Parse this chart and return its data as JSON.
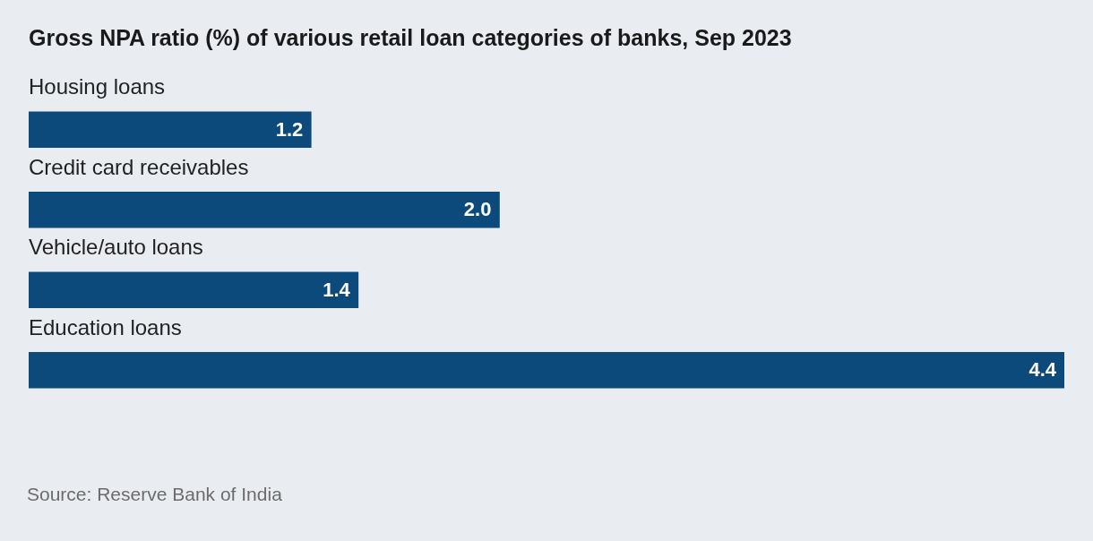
{
  "chart_data": {
    "type": "bar",
    "orientation": "horizontal",
    "title": "Gross NPA ratio (%) of various retail loan categories of banks, Sep 2023",
    "categories": [
      "Housing loans",
      "Credit card receivables",
      "Vehicle/auto loans",
      "Education loans"
    ],
    "values": [
      1.2,
      2.0,
      1.4,
      4.4
    ],
    "value_labels": [
      "1.2",
      "2.0",
      "1.4",
      "4.4"
    ],
    "color": "#0b4a7a",
    "xlim": [
      0,
      4.4
    ],
    "legend": false,
    "annotations": [
      "Source: Reserve Bank of India"
    ]
  }
}
